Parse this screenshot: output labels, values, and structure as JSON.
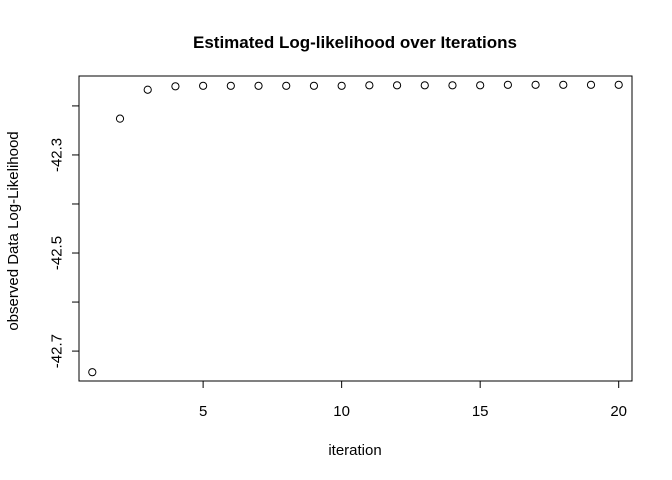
{
  "chart_data": {
    "type": "scatter",
    "title": "Estimated Log-likelihood over Iterations",
    "xlabel": "iteration",
    "ylabel": "observed Data Log-Likelihood",
    "x": [
      1,
      2,
      3,
      4,
      5,
      6,
      7,
      8,
      9,
      10,
      11,
      12,
      13,
      14,
      15,
      16,
      17,
      18,
      19,
      20
    ],
    "y": [
      -42.743,
      -42.226,
      -42.167,
      -42.16,
      -42.159,
      -42.159,
      -42.159,
      -42.159,
      -42.159,
      -42.159,
      -42.158,
      -42.158,
      -42.158,
      -42.158,
      -42.158,
      -42.157,
      -42.157,
      -42.157,
      -42.157,
      -42.157
    ],
    "xlim": [
      0.52,
      20.48
    ],
    "ylim": [
      -42.761,
      -42.139
    ],
    "xticks": [
      5,
      10,
      15,
      20
    ],
    "xtick_labels": [
      "5",
      "10",
      "15",
      "20"
    ],
    "yticks": [
      -42.3,
      -42.5,
      -42.7
    ],
    "ytick_labels": [
      "-42.3",
      "-42.5",
      "-42.7"
    ],
    "y_minor_ticks": [
      -42.2,
      -42.4,
      -42.6
    ],
    "marker": "open-circle",
    "grid": false,
    "legend": "none",
    "colors": {
      "marker": "#000000",
      "axes": "#000000",
      "background": "#ffffff"
    }
  }
}
